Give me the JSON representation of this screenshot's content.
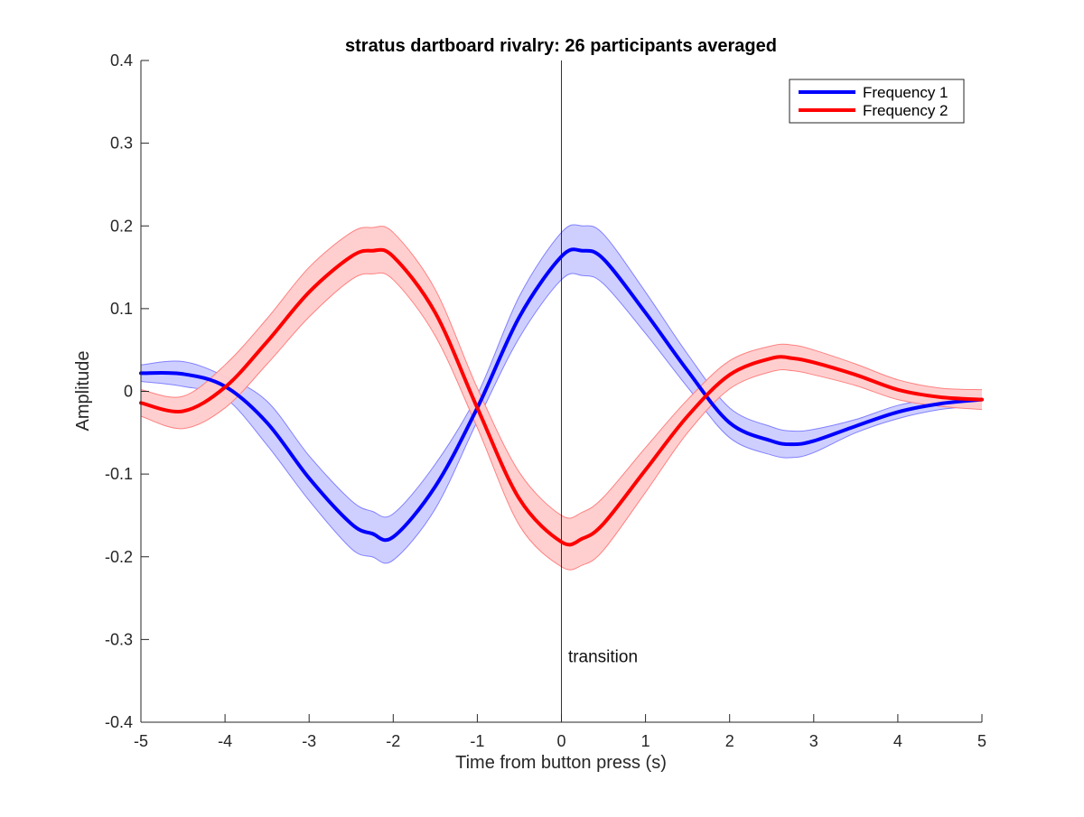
{
  "chart_data": {
    "type": "line",
    "title": "stratus dartboard rivalry: 26 participants averaged",
    "xlabel": "Time from button press (s)",
    "ylabel": "Amplitude",
    "xlim": [
      -5,
      5
    ],
    "ylim": [
      -0.4,
      0.4
    ],
    "xticks": [
      -5,
      -4,
      -3,
      -2,
      -1,
      0,
      1,
      2,
      3,
      4,
      5
    ],
    "yticks": [
      -0.4,
      -0.3,
      -0.2,
      -0.1,
      0,
      0.1,
      0.2,
      0.3,
      0.4
    ],
    "xtick_labels": [
      "-5",
      "-4",
      "-3",
      "-2",
      "-1",
      "0",
      "1",
      "2",
      "3",
      "4",
      "5"
    ],
    "ytick_labels": [
      "-0.4",
      "-0.3",
      "-0.2",
      "-0.1",
      "0",
      "0.1",
      "0.2",
      "0.3",
      "0.4"
    ],
    "grid": false,
    "legend_position": "top-right",
    "x": [
      -5,
      -4.5,
      -4,
      -3.5,
      -3,
      -2.5,
      -2.25,
      -2,
      -1.5,
      -1,
      -0.5,
      0,
      0.25,
      0.5,
      1,
      1.5,
      2,
      2.5,
      2.75,
      3,
      3.5,
      4,
      4.5,
      5
    ],
    "series": [
      {
        "name": "Frequency 1",
        "color": "#0000ff",
        "band_color": "#ccccff",
        "band_edge_color": "#8080ff",
        "values": [
          0.022,
          0.021,
          0.006,
          -0.038,
          -0.105,
          -0.16,
          -0.172,
          -0.176,
          -0.115,
          -0.02,
          0.09,
          0.163,
          0.17,
          0.16,
          0.095,
          0.025,
          -0.038,
          -0.06,
          -0.064,
          -0.06,
          -0.042,
          -0.025,
          -0.015,
          -0.01
        ],
        "upper": [
          0.032,
          0.036,
          0.018,
          -0.012,
          -0.078,
          -0.132,
          -0.145,
          -0.148,
          -0.088,
          -0.004,
          0.115,
          0.192,
          0.2,
          0.19,
          0.12,
          0.045,
          -0.02,
          -0.043,
          -0.048,
          -0.046,
          -0.034,
          -0.017,
          -0.008,
          -0.003
        ],
        "lower": [
          0.012,
          0.006,
          -0.008,
          -0.065,
          -0.132,
          -0.19,
          -0.2,
          -0.204,
          -0.142,
          -0.036,
          0.065,
          0.135,
          0.14,
          0.13,
          0.07,
          0.005,
          -0.056,
          -0.077,
          -0.08,
          -0.074,
          -0.05,
          -0.033,
          -0.022,
          -0.017
        ]
      },
      {
        "name": "Frequency 2",
        "color": "#ff0000",
        "band_color": "#ffcccc",
        "band_edge_color": "#ff8080",
        "values": [
          -0.014,
          -0.024,
          0.005,
          0.06,
          0.12,
          0.163,
          0.17,
          0.163,
          0.095,
          -0.02,
          -0.13,
          -0.182,
          -0.178,
          -0.16,
          -0.095,
          -0.03,
          0.02,
          0.04,
          0.04,
          0.035,
          0.02,
          0.002,
          -0.007,
          -0.01
        ],
        "upper": [
          0.002,
          -0.006,
          0.032,
          0.088,
          0.15,
          0.192,
          0.198,
          0.192,
          0.123,
          0.004,
          -0.098,
          -0.15,
          -0.146,
          -0.128,
          -0.068,
          -0.01,
          0.037,
          0.055,
          0.056,
          0.05,
          0.033,
          0.014,
          0.004,
          0.002
        ],
        "lower": [
          -0.03,
          -0.045,
          -0.02,
          0.033,
          0.09,
          0.135,
          0.142,
          0.135,
          0.067,
          -0.044,
          -0.162,
          -0.212,
          -0.21,
          -0.192,
          -0.122,
          -0.05,
          0.003,
          0.024,
          0.025,
          0.02,
          0.007,
          -0.01,
          -0.018,
          -0.022
        ]
      }
    ],
    "annotations": [
      {
        "text": "transition",
        "x": 0.08,
        "y": -0.32,
        "vline_x": 0
      }
    ]
  }
}
